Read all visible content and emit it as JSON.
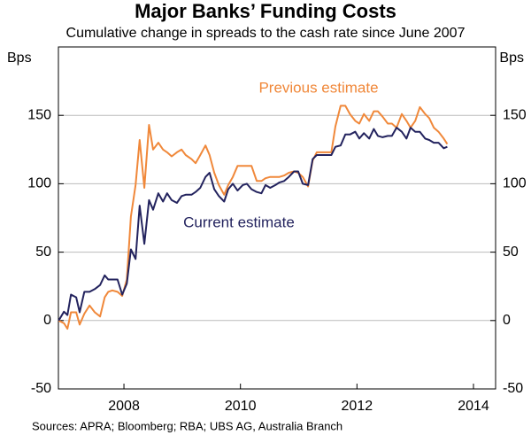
{
  "chart_data": {
    "type": "line",
    "title": "Major Banks’ Funding Costs",
    "subtitle": "Cumulative change in spreads to the cash rate since June 2007",
    "ylabel": "Bps",
    "y2label": "Bps",
    "source": "Sources: APRA; Bloomberg; RBA; UBS AG, Australia Branch",
    "xlim": [
      2006.875,
      2014.38
    ],
    "xticks": [
      2008,
      2010,
      2012,
      2014
    ],
    "ylim": [
      -50,
      200
    ],
    "yticks": [
      -50,
      0,
      50,
      100,
      150
    ],
    "grid": true,
    "x": [
      2006.88,
      2006.97,
      2007.03,
      2007.09,
      2007.18,
      2007.24,
      2007.32,
      2007.41,
      2007.5,
      2007.59,
      2007.67,
      2007.73,
      2007.8,
      2007.89,
      2007.97,
      2008.05,
      2008.12,
      2008.2,
      2008.27,
      2008.35,
      2008.43,
      2008.5,
      2008.59,
      2008.67,
      2008.74,
      2008.82,
      2008.91,
      2008.99,
      2009.06,
      2009.16,
      2009.23,
      2009.31,
      2009.4,
      2009.47,
      2009.55,
      2009.63,
      2009.72,
      2009.79,
      2009.87,
      2009.95,
      2010.04,
      2010.11,
      2010.19,
      2010.28,
      2010.36,
      2010.43,
      2010.51,
      2010.6,
      2010.67,
      2010.75,
      2010.83,
      2010.92,
      2010.99,
      2011.07,
      2011.16,
      2011.24,
      2011.31,
      2011.4,
      2011.48,
      2011.56,
      2011.63,
      2011.72,
      2011.8,
      2011.88,
      2011.97,
      2012.04,
      2012.12,
      2012.21,
      2012.29,
      2012.36,
      2012.44,
      2012.53,
      2012.6,
      2012.68,
      2012.77,
      2012.85,
      2012.92,
      2013.0,
      2013.08,
      2013.17,
      2013.24,
      2013.32,
      2013.4,
      2013.49,
      2013.55
    ],
    "series": [
      {
        "name": "Previous estimate",
        "color": "#f0883a",
        "values": [
          0,
          -2,
          -6,
          6,
          6,
          -3,
          5,
          11,
          6,
          3,
          17,
          21,
          22,
          21,
          18,
          30,
          76,
          99,
          132,
          97,
          143,
          125,
          130,
          125,
          123,
          120,
          123,
          125,
          121,
          118,
          115,
          121,
          128,
          121,
          108,
          99,
          92,
          99,
          105,
          113,
          113,
          113,
          113,
          102,
          102,
          104,
          105,
          105,
          105,
          106,
          108,
          109,
          108,
          105,
          98,
          117,
          123,
          123,
          123,
          123,
          142,
          157,
          157,
          151,
          146,
          144,
          151,
          146,
          153,
          153,
          149,
          144,
          144,
          141,
          151,
          146,
          141,
          146,
          156,
          151,
          148,
          141,
          138,
          133,
          129
        ]
      },
      {
        "name": "Current estimate",
        "color": "#23235e",
        "values": [
          0,
          6.5,
          4,
          19,
          17,
          6,
          21,
          21,
          23,
          26,
          33,
          30,
          30,
          30,
          19,
          27,
          52,
          45,
          84,
          56,
          88,
          81,
          93,
          87,
          93,
          88,
          86,
          91,
          92,
          92,
          94,
          97,
          105,
          108,
          96,
          91,
          87,
          96,
          100,
          95,
          99,
          100,
          96,
          94,
          93,
          99,
          97,
          99,
          101,
          102,
          105,
          109,
          109,
          100,
          99,
          118,
          121,
          121,
          121,
          121,
          127,
          128,
          136,
          136,
          138,
          133,
          137,
          133,
          140,
          135,
          134,
          135,
          135,
          141,
          138,
          133,
          141,
          138,
          138,
          133,
          132,
          130,
          130,
          126,
          127
        ]
      }
    ]
  }
}
